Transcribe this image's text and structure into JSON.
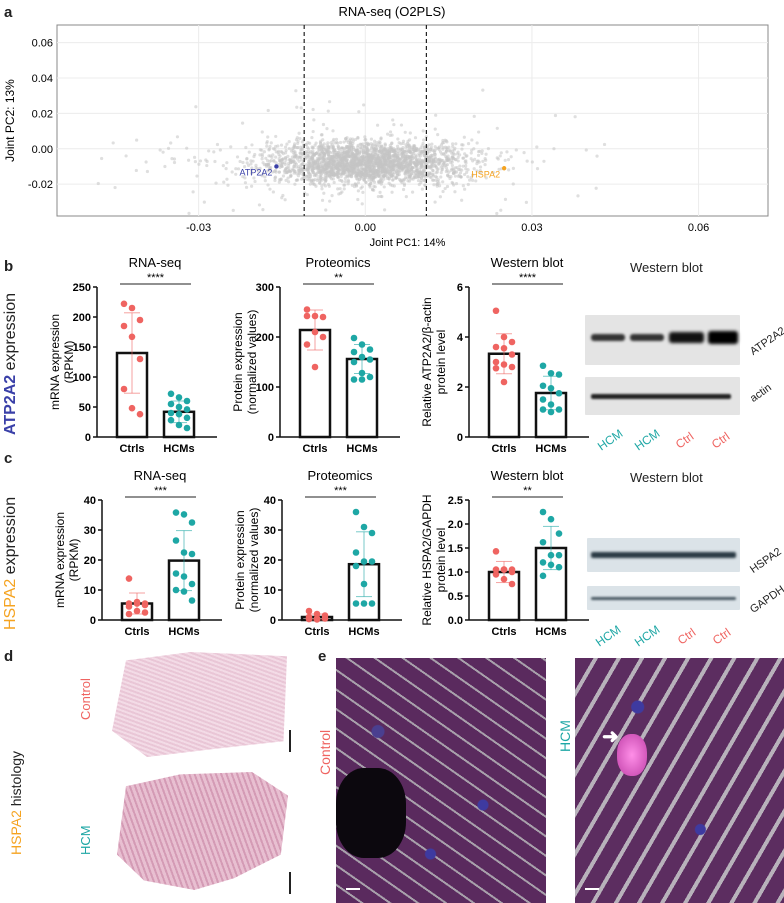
{
  "panels": {
    "a": "a",
    "b": "b",
    "c": "c",
    "d": "d",
    "e": "e"
  },
  "row_labels": {
    "b": {
      "gene": "ATP2A2",
      "rest": " expression"
    },
    "c": {
      "gene": "HSPA2",
      "rest": " expression"
    },
    "d": {
      "gene": "HSPA2",
      "rest": " histology"
    }
  },
  "colors": {
    "ctrl": "#ef6461",
    "hcm": "#1ea7a5",
    "atp2a2": "#3a40a8",
    "hspa2": "#f5a320",
    "cloud": "#c4c4c4"
  },
  "blots": {
    "b": {
      "title": "Western blot",
      "bands": [
        "ATP2A2",
        "actin"
      ],
      "lanes": [
        "HCM",
        "HCM",
        "Ctrl",
        "Ctrl"
      ]
    },
    "c": {
      "title": "Western blot",
      "bands": [
        "HSPA2",
        "GAPDH"
      ],
      "lanes": [
        "HCM",
        "HCM",
        "Ctrl",
        "Ctrl"
      ]
    }
  },
  "histology": {
    "control": "Control",
    "hcm": "HCM"
  },
  "fluorescence": {
    "control": "Control",
    "hcm": "HCM"
  },
  "chart_data": [
    {
      "type": "scatter",
      "id": "a",
      "title": "RNA-seq (O2PLS)",
      "xlabel": "Joint PC1: 14%",
      "ylabel": "Joint PC2: 13%",
      "xlim": [
        -0.0555,
        0.0725
      ],
      "ylim": [
        -0.038,
        0.07
      ],
      "xticks": [
        "-0.03",
        "0.00",
        "0.03",
        "0.06"
      ],
      "xtick_values": [
        -0.03,
        0,
        0.03,
        0.06
      ],
      "yticks": [
        "0.06",
        "0.04",
        "0.02",
        "0.00",
        "-0.02"
      ],
      "ytick_values": [
        0.06,
        0.04,
        0.02,
        0,
        -0.02
      ],
      "thresholds": [
        -0.011,
        0.011
      ],
      "highlighted": [
        {
          "label": "ATP2A2",
          "x": -0.016,
          "y": -0.01
        },
        {
          "label": "HSPA2",
          "x": 0.025,
          "y": -0.011
        }
      ],
      "cloud": {
        "center": [
          0.0,
          -0.008
        ],
        "sd": [
          0.009,
          0.006
        ],
        "n": 2600
      }
    },
    {
      "type": "bar",
      "id": "b1",
      "title": "RNA-seq",
      "ylabel": [
        "mRNA expression",
        "(RPKM)"
      ],
      "ylim": [
        0,
        250
      ],
      "yticks": [
        0,
        50,
        100,
        150,
        200,
        250
      ],
      "sig": "****",
      "categories": [
        "Ctrls",
        "HCMs"
      ],
      "means": [
        140,
        42
      ],
      "sd": [
        67,
        18
      ],
      "points": [
        [
          222,
          215,
          195,
          185,
          167,
          130,
          80,
          48,
          38
        ],
        [
          72,
          66,
          60,
          55,
          50,
          46,
          40,
          38,
          32,
          28,
          20,
          15
        ]
      ]
    },
    {
      "type": "bar",
      "id": "b2",
      "title": "Proteomics",
      "ylabel": [
        "Protein expression",
        "(normalized values)"
      ],
      "ylim": [
        0,
        300
      ],
      "yticks": [
        0,
        100,
        200,
        300
      ],
      "sig": "**",
      "categories": [
        "Ctrls",
        "HCMs"
      ],
      "means": [
        214,
        156
      ],
      "sd": [
        40,
        29
      ],
      "points": [
        [
          255,
          242,
          240,
          242,
          210,
          200,
          185,
          140
        ],
        [
          198,
          185,
          175,
          170,
          160,
          155,
          150,
          128,
          120,
          115,
          115
        ]
      ]
    },
    {
      "type": "bar",
      "id": "b3",
      "title": "Western blot",
      "ylabel": [
        "Relative ATP2A2/β-actin",
        "protein level"
      ],
      "ylim": [
        0,
        6
      ],
      "yticks": [
        0,
        2,
        4,
        6
      ],
      "sig": "****",
      "categories": [
        "Ctrls",
        "HCMs"
      ],
      "means": [
        3.33,
        1.76
      ],
      "sd": [
        0.8,
        0.67
      ],
      "points": [
        [
          5.05,
          4.0,
          3.8,
          3.6,
          3.55,
          3.3,
          3.0,
          2.9,
          2.8,
          2.75,
          2.2
        ],
        [
          2.85,
          2.55,
          2.5,
          2.05,
          1.95,
          1.75,
          1.5,
          1.3,
          1.1,
          1.1,
          1.0
        ]
      ]
    },
    {
      "type": "bar",
      "id": "c1",
      "title": "RNA-seq",
      "ylabel": [
        "mRNA expression",
        "(RPKM)"
      ],
      "ylim": [
        0,
        40
      ],
      "yticks": [
        0,
        10,
        20,
        30,
        40
      ],
      "sig": "***",
      "categories": [
        "Ctrls",
        "HCMs"
      ],
      "means": [
        5.5,
        19.8
      ],
      "sd": [
        3.5,
        10
      ],
      "points": [
        [
          13.8,
          6,
          5.5,
          5.5,
          5.5,
          5,
          4.5,
          3,
          2.5,
          2
        ],
        [
          35.8,
          35.2,
          32.5,
          26.5,
          22.5,
          22,
          15.5,
          14.5,
          12,
          10,
          9.5,
          6.5
        ]
      ]
    },
    {
      "type": "bar",
      "id": "c2",
      "title": "Proteomics",
      "ylabel": [
        "Protein expression",
        "(normalized values)"
      ],
      "ylim": [
        0,
        40
      ],
      "yticks": [
        0,
        10,
        20,
        30,
        40
      ],
      "sig": "***",
      "categories": [
        "Ctrls",
        "HCMs"
      ],
      "means": [
        1,
        18.6
      ],
      "sd": [
        1,
        10.8
      ],
      "points": [
        [
          3,
          2,
          1.5,
          1,
          0.5,
          0.5,
          0.3,
          0.2
        ],
        [
          36,
          31,
          29,
          22.5,
          19.5,
          19.5,
          18,
          12,
          5.5,
          5.5,
          5.5
        ]
      ]
    },
    {
      "type": "bar",
      "id": "c3",
      "title": "Western blot",
      "ylabel": [
        "Relative HSPA2/GAPDH",
        "protein level"
      ],
      "ylim": [
        0,
        2.5
      ],
      "yticks": [
        0,
        0.5,
        1.0,
        1.5,
        2.0,
        2.5
      ],
      "ytick_labels": [
        "0.0",
        "0.5",
        "1.0",
        "1.5",
        "2.0",
        "2.5"
      ],
      "sig": "**",
      "categories": [
        "Ctrls",
        "HCMs"
      ],
      "means": [
        1.0,
        1.5
      ],
      "sd": [
        0.22,
        0.45
      ],
      "points": [
        [
          1.43,
          1.05,
          1.05,
          1.05,
          1.05,
          1.0,
          0.95,
          0.85,
          0.75
        ],
        [
          2.25,
          2.1,
          1.8,
          1.62,
          1.35,
          1.35,
          1.2,
          1.15,
          1.1,
          0.92
        ]
      ]
    }
  ]
}
